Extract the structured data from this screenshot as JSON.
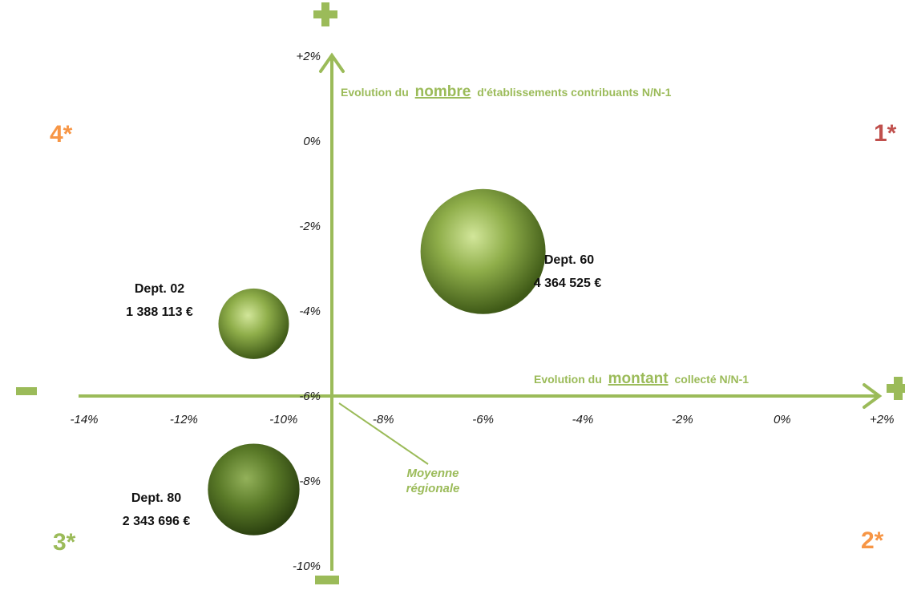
{
  "chart_data": {
    "type": "bubble",
    "title": "",
    "xlabel": {
      "prefix": "Evolution du",
      "key": "montant",
      "suffix": "collecté N/N-1"
    },
    "ylabel": {
      "prefix": "Evolution du",
      "key": "nombre",
      "suffix": "d'établissements contribuants N/N-1"
    },
    "x_ticks": [
      -14,
      -12,
      -10,
      -8,
      -6,
      -4,
      -2,
      0,
      2
    ],
    "x_tick_labels": [
      "-14%",
      "-12%",
      "-10%",
      "-8%",
      "-6%",
      "-4%",
      "-2%",
      "0%",
      "+2%"
    ],
    "y_ticks": [
      -10,
      -8,
      -6,
      -4,
      -2,
      0,
      2
    ],
    "y_tick_labels": [
      "-10%",
      "-8%",
      "-6%",
      "-4%",
      "-2%",
      "0%",
      "+2%"
    ],
    "xlim": [
      -14,
      2
    ],
    "ylim": [
      -10,
      2
    ],
    "axis_cross": {
      "x": -9.0,
      "y": -6.0
    },
    "series": [
      {
        "name": "Dept. 60",
        "value_label": "4 364 525 €",
        "x": -6.0,
        "y": -2.6,
        "size": 4364525
      },
      {
        "name": "Dept. 02",
        "value_label": "1 388 113 €",
        "x": -10.6,
        "y": -4.3,
        "size": 1388113
      },
      {
        "name": "Dept. 80",
        "value_label": "2 343 696 €",
        "x": -10.6,
        "y": -8.2,
        "size": 2343696
      }
    ],
    "quadrants": [
      {
        "label": "1*",
        "color": "#c0504d"
      },
      {
        "label": "2*",
        "color": "#f79646"
      },
      {
        "label": "3*",
        "color": "#9bbb59"
      },
      {
        "label": "4*",
        "color": "#f79646"
      }
    ],
    "annotation": {
      "line1": "Moyenne",
      "line2": "régionale"
    },
    "axis_signs": {
      "plus": "+",
      "minus": "−"
    },
    "colors": {
      "axis": "#9bbb59",
      "bubble_light": "#c9de8c",
      "bubble_mid": "#7c9a3c",
      "bubble_dark": "#3f5a17",
      "bubble_small_dark": "#4b6620"
    },
    "grid": false,
    "legend": "none"
  }
}
